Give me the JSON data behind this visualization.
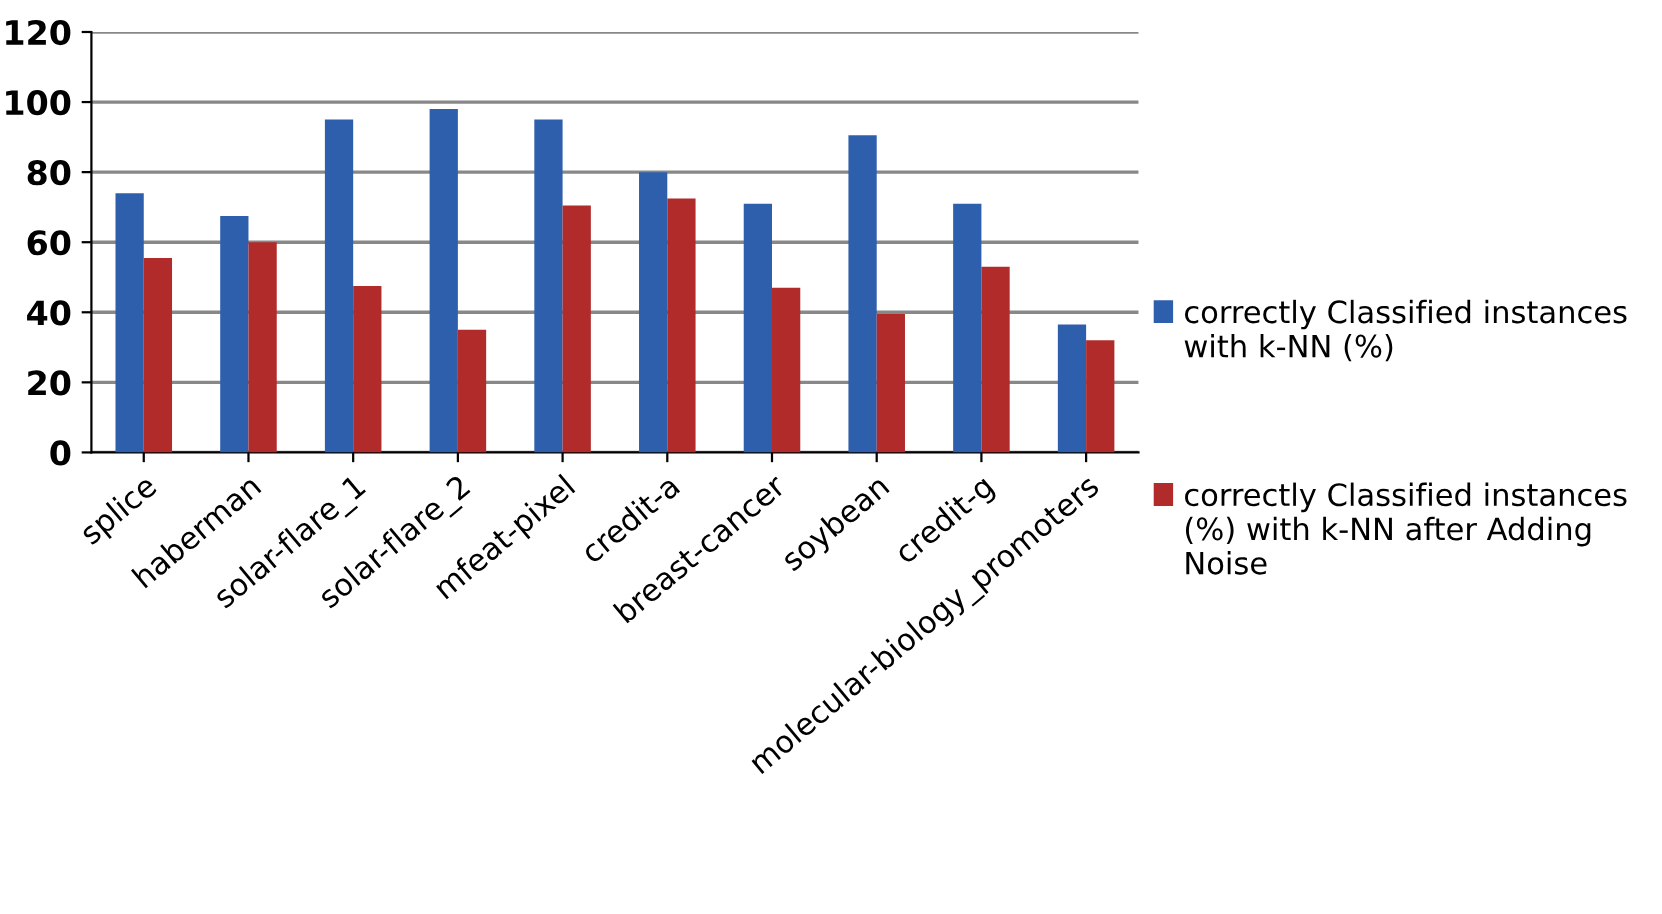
{
  "chart_data": {
    "type": "bar",
    "categories": [
      "splice",
      "haberman",
      "solar-flare_1",
      "solar-flare_2",
      "mfeat-pixel",
      "credit-a",
      "breast-cancer",
      "soybean",
      "credit-g",
      "molecular-biology_promoters"
    ],
    "series": [
      {
        "name": "correctly Classified instances with k-NN (%)",
        "color": "#2e5fad",
        "values": [
          74,
          67.5,
          95,
          98,
          95,
          80,
          71,
          90.5,
          71,
          36.5
        ]
      },
      {
        "name": "correctly Classified instances (%) with k-NN after Adding Noise",
        "color": "#b22b2b",
        "values": [
          55.5,
          60,
          47.5,
          35,
          70.5,
          72.5,
          47,
          39.5,
          53,
          32
        ]
      }
    ],
    "ylim": [
      0,
      120
    ],
    "yticks": [
      0,
      20,
      40,
      60,
      80,
      100,
      120
    ],
    "grid": "y",
    "legend": "right"
  }
}
